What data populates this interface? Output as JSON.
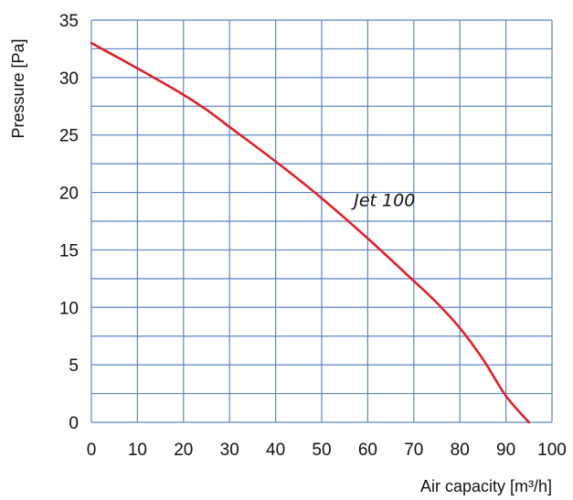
{
  "chart_data": {
    "type": "line",
    "xlabel": "Air capacity [m³/h]",
    "ylabel": "Pressure [Pa]",
    "xlim": [
      0,
      100
    ],
    "ylim": [
      0,
      35
    ],
    "x_ticks": [
      0,
      10,
      20,
      30,
      40,
      50,
      60,
      70,
      80,
      90,
      100
    ],
    "y_ticks": [
      0,
      5,
      10,
      15,
      20,
      25,
      30,
      35
    ],
    "x_minor_step": 10,
    "y_minor_step": 2.5,
    "grid": true,
    "colors": {
      "grid": "#5b86c6",
      "line": "#e0202a"
    },
    "series": [
      {
        "name": "Jet 100",
        "x": [
          0,
          10,
          20,
          25,
          30,
          40,
          50,
          60,
          70,
          75,
          80,
          85,
          90,
          95
        ],
        "y": [
          33,
          30.8,
          28.5,
          27.2,
          25.7,
          22.7,
          19.5,
          16.0,
          12.3,
          10.4,
          8.2,
          5.5,
          2.3,
          0
        ]
      }
    ],
    "annotations": [
      {
        "text": "Jet 100",
        "x": 57,
        "y": 18.8
      }
    ]
  }
}
